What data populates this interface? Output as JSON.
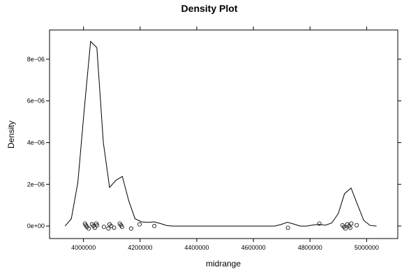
{
  "chart_data": {
    "type": "line",
    "title": "Density Plot",
    "xlabel": "midrange",
    "ylabel": "Density",
    "xlim": [
      3880000,
      5110000
    ],
    "ylim": [
      -6e-07,
      9.4e-06
    ],
    "x_ticks": [
      {
        "value": 4000000,
        "label": "4000000"
      },
      {
        "value": 4200000,
        "label": "4200000"
      },
      {
        "value": 4400000,
        "label": "4400000"
      },
      {
        "value": 4600000,
        "label": "4600000"
      },
      {
        "value": 4800000,
        "label": "4800000"
      },
      {
        "value": 5000000,
        "label": "5000000"
      }
    ],
    "y_ticks": [
      {
        "value": 0,
        "label": "0e+00"
      },
      {
        "value": 2e-06,
        "label": "2e−06"
      },
      {
        "value": 4e-06,
        "label": "4e−06"
      },
      {
        "value": 6e-06,
        "label": "6e−06"
      },
      {
        "value": 8e-06,
        "label": "8e−06"
      }
    ],
    "grid": false,
    "series": [
      {
        "x": [
          3935000,
          3957000,
          3980000,
          4002000,
          4025000,
          4047000,
          4070000,
          4092000,
          4115000,
          4137000,
          4160000,
          4182000,
          4205000,
          4227000,
          4250000,
          4272000,
          4295000,
          4317000,
          4340000,
          4400000,
          4500000,
          4600000,
          4675000,
          4697000,
          4720000,
          4742000,
          4765000,
          4787000,
          4810000,
          4832000,
          4855000,
          4877000,
          4900000,
          4922000,
          4945000,
          4967000,
          4990000,
          5012000,
          5035000
        ],
        "y": [
          0,
          3.5e-07,
          2.1e-06,
          5.5e-06,
          8.85e-06,
          8.55e-06,
          4e-06,
          1.85e-06,
          2.2e-06,
          2.38e-06,
          1.2e-06,
          3.5e-07,
          2e-07,
          1.8e-07,
          2e-07,
          1.2e-07,
          2e-08,
          0,
          0,
          0,
          0,
          0,
          0,
          7e-08,
          1.8e-07,
          1e-07,
          0,
          0,
          5e-08,
          8e-08,
          4e-08,
          1.5e-07,
          6e-07,
          1.55e-06,
          1.82e-06,
          1.05e-06,
          2.7e-07,
          3e-08,
          0
        ]
      }
    ],
    "rug_points": {
      "x": [
        4005000,
        4008000,
        4012000,
        4018000,
        4030000,
        4035000,
        4040000,
        4045000,
        4048000,
        4072000,
        4088000,
        4092000,
        4098000,
        4108000,
        4128000,
        4132000,
        4136000,
        4168000,
        4198000,
        4250000,
        4722000,
        4833000,
        4915000,
        4920000,
        4925000,
        4932000,
        4938000,
        4942000,
        4946000,
        4965000
      ],
      "y": [
        0,
        0,
        0,
        0,
        0,
        0,
        0,
        0,
        0,
        0,
        0,
        0,
        0,
        0,
        0,
        0,
        0,
        0,
        0,
        0,
        0,
        0,
        0,
        0,
        0,
        0,
        0,
        0,
        0,
        0
      ]
    }
  }
}
